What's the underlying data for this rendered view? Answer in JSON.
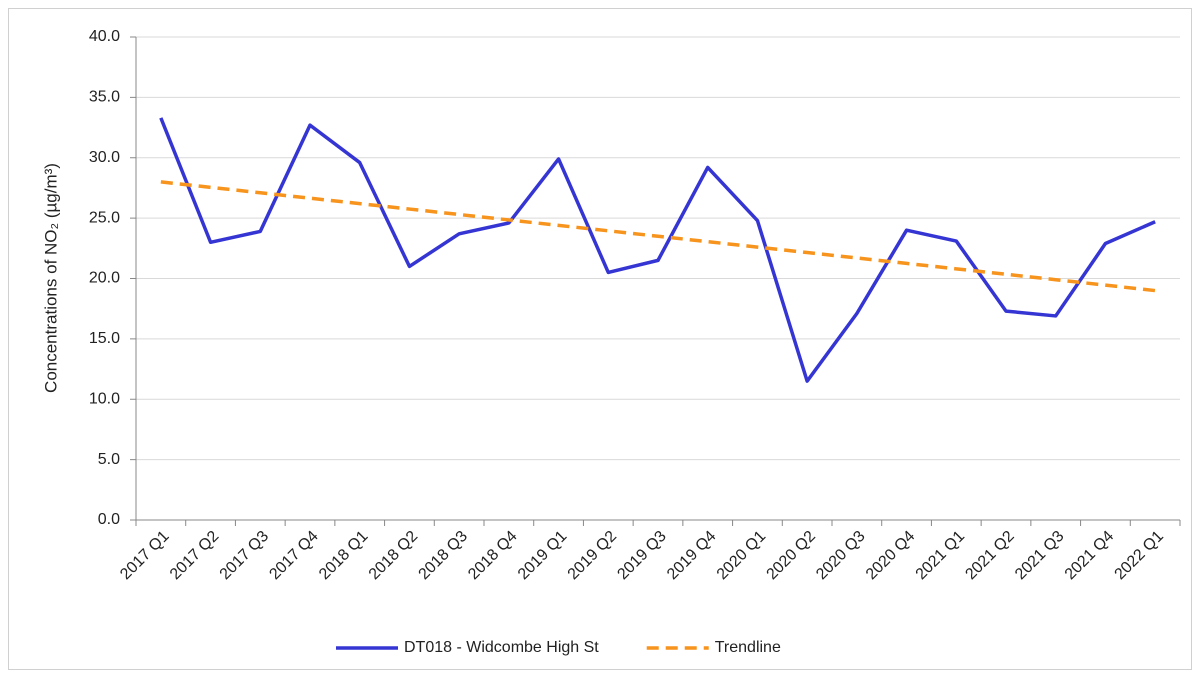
{
  "chart_data": {
    "type": "line",
    "y_label": "Concentrations of NO₂ (µg/m³)",
    "categories": [
      "2017 Q1",
      "2017 Q2",
      "2017 Q3",
      "2017 Q4",
      "2018 Q1",
      "2018 Q2",
      "2018 Q3",
      "2018 Q4",
      "2019 Q1",
      "2019 Q2",
      "2019 Q3",
      "2019 Q4",
      "2020 Q1",
      "2020 Q2",
      "2020 Q3",
      "2020 Q4",
      "2021 Q1",
      "2021 Q2",
      "2021 Q3",
      "2021 Q4",
      "2022 Q1"
    ],
    "series": [
      {
        "name": "DT018 - Widcombe High St",
        "color": "#3535d4",
        "dash": false,
        "values": [
          33.3,
          23.0,
          23.9,
          32.7,
          29.6,
          21.0,
          23.7,
          24.6,
          29.9,
          20.5,
          21.5,
          29.2,
          24.8,
          11.5,
          17.1,
          24.0,
          23.1,
          17.3,
          16.9,
          22.9,
          24.7
        ]
      },
      {
        "name": "Trendline",
        "color": "#f7941d",
        "dash": true,
        "values": [
          28.0,
          27.55,
          27.1,
          26.65,
          26.2,
          25.75,
          25.3,
          24.85,
          24.4,
          23.95,
          23.5,
          23.05,
          22.6,
          22.15,
          21.7,
          21.25,
          20.8,
          20.35,
          19.9,
          19.45,
          19.0
        ]
      }
    ],
    "ylim": [
      0,
      40
    ],
    "yticks": [
      {
        "value": 0,
        "label": "0.0"
      },
      {
        "value": 5,
        "label": "5.0"
      },
      {
        "value": 10,
        "label": "10.0"
      },
      {
        "value": 15,
        "label": "15.0"
      },
      {
        "value": 20,
        "label": "20.0"
      },
      {
        "value": 25,
        "label": "25.0"
      },
      {
        "value": 30,
        "label": "30.0"
      },
      {
        "value": 35,
        "label": "35.0"
      },
      {
        "value": 40,
        "label": "40.0"
      }
    ],
    "grid": true,
    "legend": "bottom"
  }
}
